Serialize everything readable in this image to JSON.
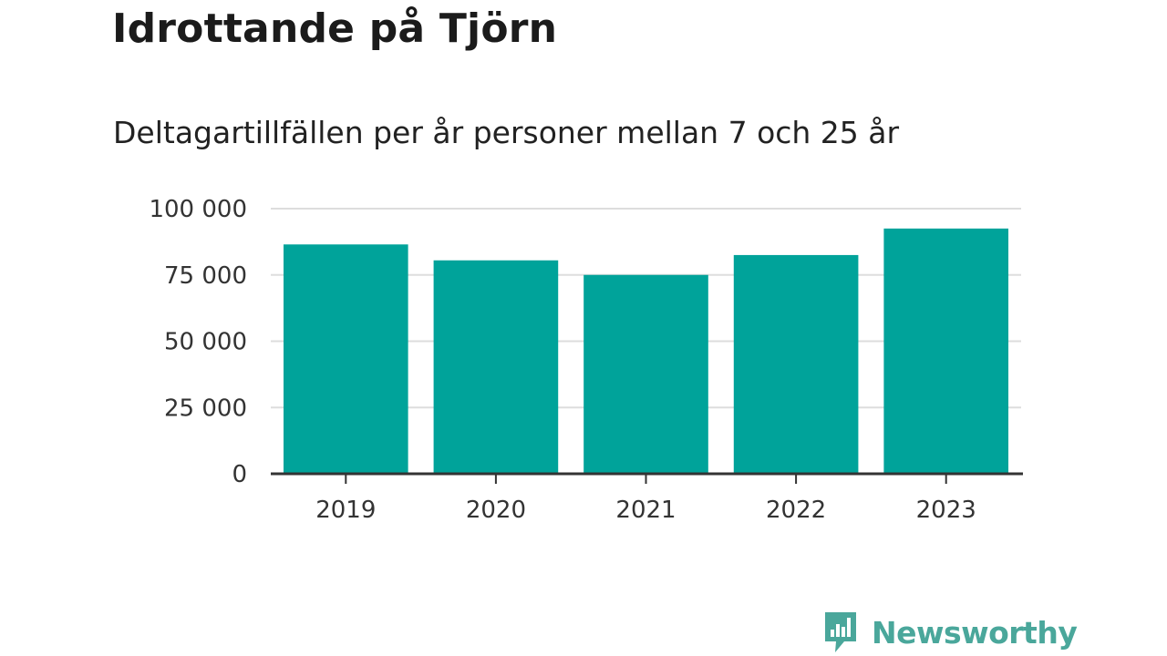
{
  "title": "Idrottande på Tjörn",
  "subtitle": "Deltagartillfällen per år personer mellan 7 och 25 år",
  "brand": {
    "name": "Newsworthy",
    "icon": "newsworthy-logo-icon",
    "color": "#4aa79b"
  },
  "colors": {
    "bar": "#00a39a",
    "grid": "#dddddd",
    "axis": "#333333"
  },
  "chart_data": {
    "type": "bar",
    "categories": [
      "2019",
      "2020",
      "2021",
      "2022",
      "2023"
    ],
    "values": [
      86500,
      80500,
      75000,
      82500,
      92500
    ],
    "ylim": [
      0,
      100000
    ],
    "yticks": [
      0,
      25000,
      50000,
      75000,
      100000
    ],
    "ytick_labels": [
      "0",
      "25 000",
      "50 000",
      "75 000",
      "100 000"
    ],
    "xlabel": "",
    "ylabel": "",
    "grid": true,
    "legend": "none"
  }
}
